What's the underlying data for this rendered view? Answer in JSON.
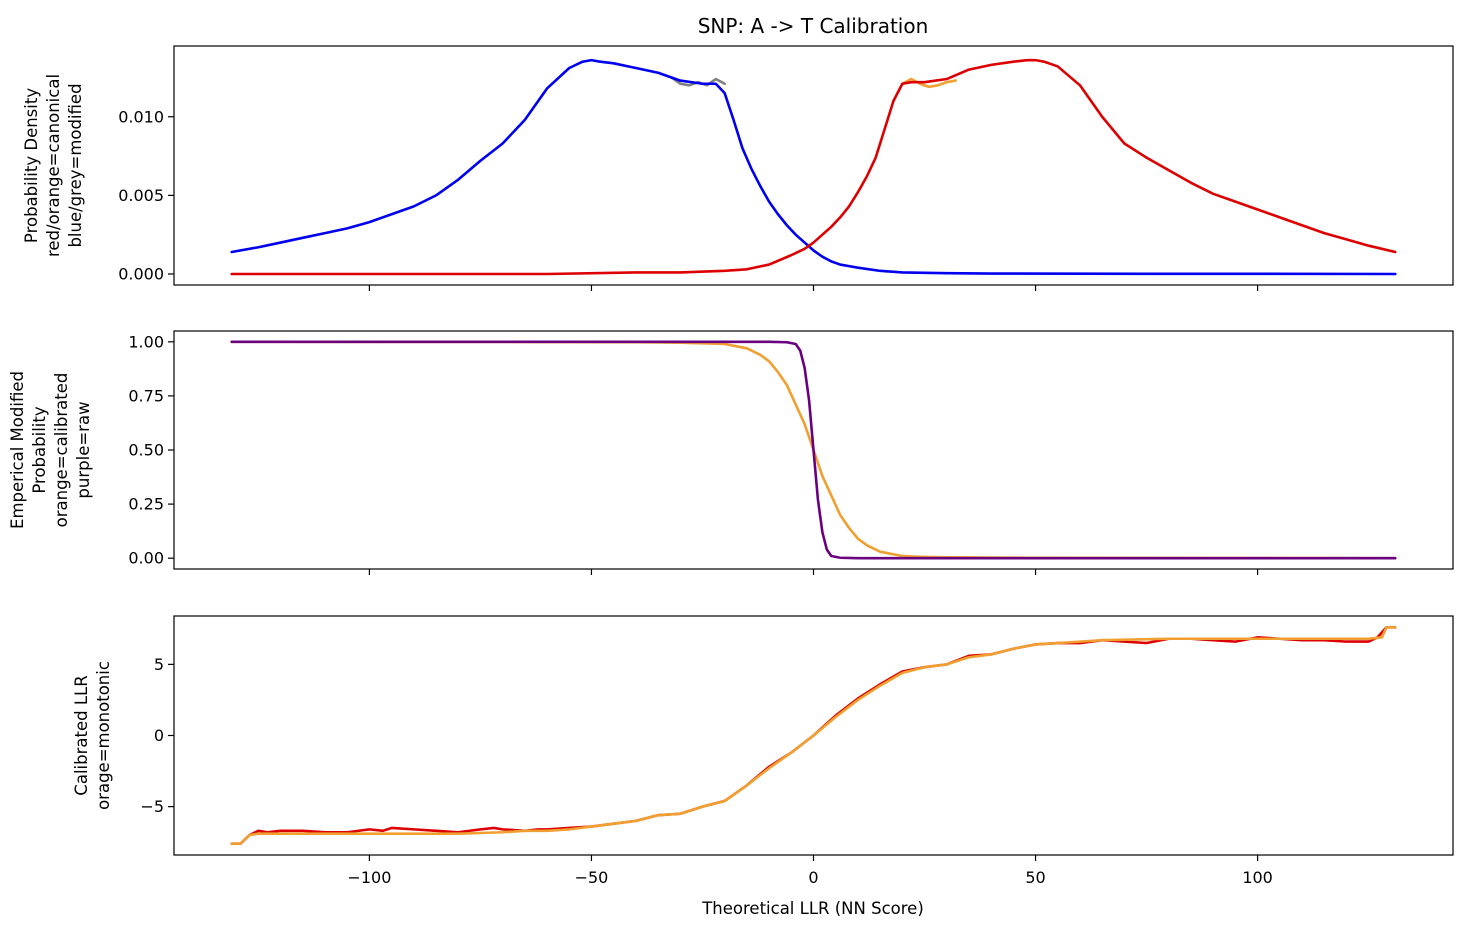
{
  "figure": {
    "title": "SNP: A -> T Calibration",
    "xlabel": "Theoretical LLR (NN Score)"
  },
  "chart_data": [
    {
      "type": "line",
      "ylabel_lines": [
        "Probability Density",
        "red/orange=canonical",
        "blue/grey=modified"
      ],
      "xlim": [
        -144,
        144
      ],
      "ylim": [
        -0.0007,
        0.0145
      ],
      "yticks": [
        0.0,
        0.005,
        0.01
      ],
      "ytick_labels": [
        "0.000",
        "0.005",
        "0.010"
      ],
      "xticks": [
        -100,
        -50,
        0,
        50,
        100
      ],
      "show_xtick_labels": false,
      "series": [
        {
          "key": "grey",
          "color": "#808080",
          "x": [
            -32,
            -30,
            -28,
            -26,
            -24,
            -22,
            -20
          ],
          "y": [
            0.0125,
            0.0121,
            0.012,
            0.0122,
            0.012,
            0.0124,
            0.0121
          ]
        },
        {
          "key": "orange",
          "color": "#f0a030",
          "x": [
            20,
            22,
            24,
            26,
            28,
            30,
            32
          ],
          "y": [
            0.0121,
            0.0124,
            0.0121,
            0.0119,
            0.012,
            0.0122,
            0.0123
          ]
        },
        {
          "key": "blue",
          "color": "#0000ee",
          "x": [
            -131,
            -125,
            -120,
            -115,
            -110,
            -105,
            -100,
            -95,
            -90,
            -85,
            -80,
            -75,
            -70,
            -65,
            -60,
            -55,
            -52,
            -50,
            -48,
            -45,
            -40,
            -35,
            -30,
            -25,
            -22,
            -20,
            -18,
            -16,
            -14,
            -12,
            -10,
            -8,
            -6,
            -4,
            -2,
            0,
            2,
            4,
            6,
            8,
            10,
            15,
            20,
            30,
            40,
            60,
            80,
            100,
            131
          ],
          "y": [
            0.0014,
            0.0017,
            0.002,
            0.0023,
            0.0026,
            0.0029,
            0.0033,
            0.0038,
            0.0043,
            0.005,
            0.006,
            0.0072,
            0.0083,
            0.0098,
            0.0118,
            0.0131,
            0.0135,
            0.0136,
            0.0135,
            0.0134,
            0.0131,
            0.0128,
            0.0123,
            0.0121,
            0.0121,
            0.0115,
            0.0098,
            0.008,
            0.0067,
            0.0056,
            0.0046,
            0.0038,
            0.0031,
            0.0025,
            0.002,
            0.0015,
            0.0011,
            0.0008,
            0.0006,
            0.0005,
            0.0004,
            0.0002,
            0.0001,
            5e-05,
            3e-05,
            2e-05,
            1e-05,
            1e-05,
            0.0
          ]
        },
        {
          "key": "red",
          "color": "#dd0000",
          "x": [
            -131,
            -100,
            -60,
            -40,
            -30,
            -20,
            -15,
            -10,
            -5,
            -2,
            0,
            2,
            4,
            6,
            8,
            10,
            12,
            14,
            16,
            18,
            20,
            22,
            25,
            30,
            35,
            40,
            45,
            48,
            50,
            52,
            55,
            60,
            65,
            70,
            75,
            80,
            85,
            90,
            95,
            100,
            105,
            110,
            115,
            120,
            125,
            131
          ],
          "y": [
            0.0,
            0.0,
            0.0,
            0.0001,
            0.0001,
            0.0002,
            0.0003,
            0.0006,
            0.0012,
            0.0016,
            0.002,
            0.0025,
            0.003,
            0.0036,
            0.0043,
            0.0052,
            0.0062,
            0.0074,
            0.0092,
            0.011,
            0.0121,
            0.0122,
            0.0122,
            0.0124,
            0.013,
            0.0133,
            0.0135,
            0.0136,
            0.0136,
            0.0135,
            0.0132,
            0.012,
            0.01,
            0.0083,
            0.0074,
            0.0066,
            0.0058,
            0.0051,
            0.0046,
            0.0041,
            0.0036,
            0.0031,
            0.0026,
            0.0022,
            0.0018,
            0.0014
          ]
        }
      ]
    },
    {
      "type": "line",
      "ylabel_lines": [
        "Emperical Modified",
        "Probability",
        "orange=calibrated",
        "purple=raw"
      ],
      "xlim": [
        -144,
        144
      ],
      "ylim": [
        -0.05,
        1.05
      ],
      "yticks": [
        0.0,
        0.25,
        0.5,
        0.75,
        1.0
      ],
      "ytick_labels": [
        "0.00",
        "0.25",
        "0.50",
        "0.75",
        "1.00"
      ],
      "xticks": [
        -100,
        -50,
        0,
        50,
        100
      ],
      "show_xtick_labels": false,
      "series": [
        {
          "key": "orange",
          "color": "#f0a030",
          "x": [
            -131,
            -60,
            -40,
            -30,
            -20,
            -15,
            -12,
            -10,
            -8,
            -6,
            -4,
            -2,
            0,
            2,
            4,
            6,
            8,
            10,
            12,
            15,
            20,
            25,
            30,
            50,
            131
          ],
          "y": [
            1.0,
            0.999,
            0.998,
            0.996,
            0.99,
            0.97,
            0.94,
            0.91,
            0.86,
            0.8,
            0.71,
            0.62,
            0.5,
            0.38,
            0.29,
            0.2,
            0.14,
            0.09,
            0.06,
            0.03,
            0.01,
            0.006,
            0.004,
            0.002,
            0.0
          ]
        },
        {
          "key": "purple",
          "color": "#6a0080",
          "x": [
            -131,
            -10,
            -6,
            -4,
            -3,
            -2,
            -1,
            0,
            1,
            2,
            3,
            4,
            6,
            10,
            131
          ],
          "y": [
            1.0,
            1.0,
            0.998,
            0.99,
            0.96,
            0.88,
            0.73,
            0.5,
            0.27,
            0.12,
            0.04,
            0.01,
            0.002,
            0.0,
            0.0
          ]
        }
      ]
    },
    {
      "type": "line",
      "ylabel_lines": [
        "Calibrated LLR",
        "orage=monotonic"
      ],
      "xlim": [
        -144,
        144
      ],
      "ylim": [
        -8.4,
        8.4
      ],
      "yticks": [
        -5,
        0,
        5
      ],
      "ytick_labels": [
        "−5",
        "0",
        "5"
      ],
      "xticks": [
        -100,
        -50,
        0,
        50,
        100
      ],
      "xtick_labels": [
        "−100",
        "−50",
        "0",
        "50",
        "100"
      ],
      "show_xtick_labels": true,
      "series": [
        {
          "key": "red",
          "color": "#dd0000",
          "x": [
            -131,
            -129,
            -127,
            -125,
            -123,
            -120,
            -115,
            -110,
            -105,
            -100,
            -97,
            -95,
            -90,
            -85,
            -80,
            -75,
            -72,
            -70,
            -65,
            -62,
            -60,
            -55,
            -50,
            -45,
            -40,
            -35,
            -30,
            -25,
            -20,
            -15,
            -10,
            -5,
            0,
            5,
            10,
            15,
            20,
            25,
            30,
            35,
            40,
            45,
            50,
            55,
            60,
            65,
            70,
            75,
            80,
            85,
            90,
            95,
            100,
            105,
            110,
            115,
            120,
            125,
            127,
            129,
            131
          ],
          "y": [
            -7.6,
            -7.6,
            -7.0,
            -6.7,
            -6.8,
            -6.7,
            -6.7,
            -6.8,
            -6.8,
            -6.6,
            -6.7,
            -6.5,
            -6.6,
            -6.7,
            -6.8,
            -6.6,
            -6.5,
            -6.6,
            -6.7,
            -6.6,
            -6.6,
            -6.5,
            -6.4,
            -6.2,
            -6.0,
            -5.6,
            -5.5,
            -5.0,
            -4.6,
            -3.5,
            -2.2,
            -1.2,
            0.0,
            1.4,
            2.6,
            3.6,
            4.5,
            4.8,
            5.0,
            5.6,
            5.7,
            6.1,
            6.4,
            6.5,
            6.5,
            6.7,
            6.6,
            6.5,
            6.8,
            6.8,
            6.7,
            6.6,
            6.9,
            6.8,
            6.7,
            6.7,
            6.6,
            6.6,
            6.9,
            7.6,
            7.6
          ]
        },
        {
          "key": "orange",
          "color": "#f0a030",
          "x": [
            -131,
            -129,
            -127,
            -125,
            -100,
            -80,
            -70,
            -65,
            -60,
            -55,
            -50,
            -45,
            -40,
            -35,
            -30,
            -25,
            -20,
            -15,
            -10,
            -5,
            0,
            5,
            10,
            15,
            20,
            25,
            30,
            35,
            40,
            45,
            50,
            55,
            60,
            65,
            80,
            100,
            125,
            128,
            129,
            131
          ],
          "y": [
            -7.6,
            -7.6,
            -7.0,
            -6.9,
            -6.9,
            -6.9,
            -6.8,
            -6.7,
            -6.7,
            -6.6,
            -6.4,
            -6.2,
            -6.0,
            -5.6,
            -5.5,
            -5.0,
            -4.6,
            -3.5,
            -2.3,
            -1.2,
            0.0,
            1.3,
            2.5,
            3.5,
            4.4,
            4.8,
            5.0,
            5.5,
            5.7,
            6.1,
            6.4,
            6.5,
            6.6,
            6.7,
            6.8,
            6.8,
            6.8,
            6.9,
            7.6,
            7.6
          ]
        }
      ]
    }
  ]
}
